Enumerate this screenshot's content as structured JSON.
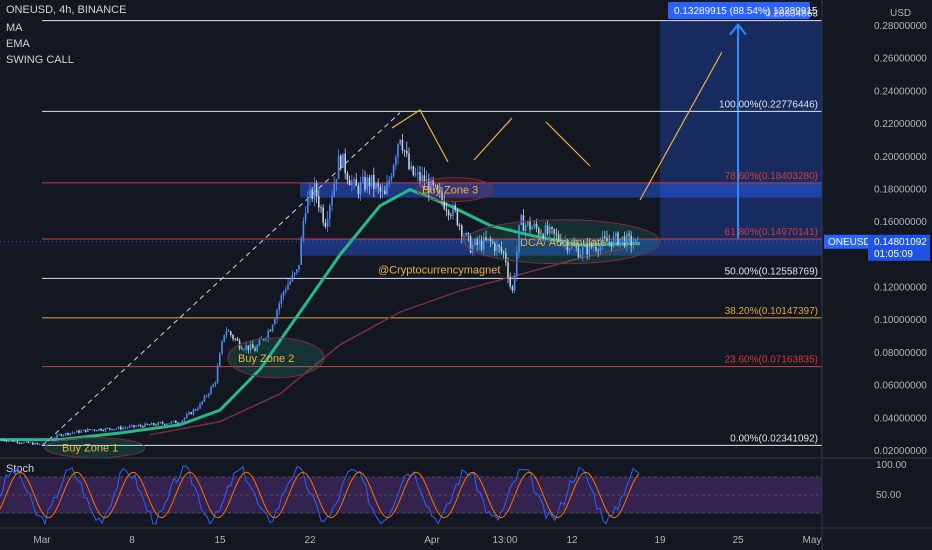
{
  "header": {
    "symbol_line": "ONEUSD, 4h, BINANCE",
    "indicators": [
      "MA",
      "EMA",
      "SWING CALL"
    ],
    "currency": "USD"
  },
  "colors": {
    "background": "#131722",
    "candle_up": "#4c8bf5",
    "candle_down": "#c4cde0",
    "ema": "#26b98a",
    "ma": "#7a2f3e",
    "zone_fill": "#2962ff",
    "fib_white": "#e0e3eb",
    "fib_red": "#d43b3b",
    "fib_orange": "#e0a43a",
    "annot_orange": "#f0b23a",
    "rsi_fill": "#4b2a6e"
  },
  "chart_data": {
    "type": "candlestick",
    "y_scale": "linear",
    "ylim": [
      0.015,
      0.285
    ],
    "y_ticks": [
      "0.28000000",
      "0.26000000",
      "0.24000000",
      "0.22000000",
      "0.20000000",
      "0.18000000",
      "0.16000000",
      "0.14000000",
      "0.12000000",
      "0.10000000",
      "0.08000000",
      "0.06000000",
      "0.04000000",
      "0.02000000"
    ],
    "x_ticks": [
      "Mar",
      "8",
      "15",
      "22",
      "Apr",
      "13:00",
      "12",
      "19",
      "25",
      "May"
    ],
    "price_path_approx": [
      [
        "Mar",
        0.028
      ],
      [
        "8",
        0.034
      ],
      [
        "15",
        0.06
      ],
      [
        "22",
        0.17
      ],
      [
        "Apr",
        0.175
      ],
      [
        "13:00",
        0.13
      ],
      [
        "12",
        0.148
      ]
    ],
    "current_price": "0.14801092",
    "countdown": "01:05:09",
    "projection_label": "0.13289915 (88.54%) 13289915",
    "projection_target": "0.28334863",
    "fib_levels": [
      {
        "label": "100.00%(0.22776446)",
        "value": 0.22776446,
        "color_key": "fib_white"
      },
      {
        "label": "78.60%(0.18403280)",
        "value": 0.1840328,
        "color_key": "fib_red"
      },
      {
        "label": "61.80%(0.14970141)",
        "value": 0.14970141,
        "color_key": "fib_red"
      },
      {
        "label": "50.00%(0.12558769)",
        "value": 0.12558769,
        "color_key": "fib_white"
      },
      {
        "label": "38.20%(0.10147397)",
        "value": 0.10147397,
        "color_key": "fib_orange"
      },
      {
        "label": "23.60%(0.07163835)",
        "value": 0.07163835,
        "color_key": "fib_red"
      },
      {
        "label": "0.00%(0.02341092)",
        "value": 0.02341092,
        "color_key": "fib_white"
      }
    ],
    "annotations": [
      "Buy Zone 1",
      "Buy Zone 2",
      "Buy Zone 3",
      "DCA/ Accumulate",
      "@Cryptocurrencymagnet"
    ],
    "oscillator": {
      "title": "Stoch",
      "ticks": [
        "100.00",
        "50.00"
      ],
      "range": [
        0,
        100
      ],
      "bands": [
        20,
        80
      ]
    }
  }
}
